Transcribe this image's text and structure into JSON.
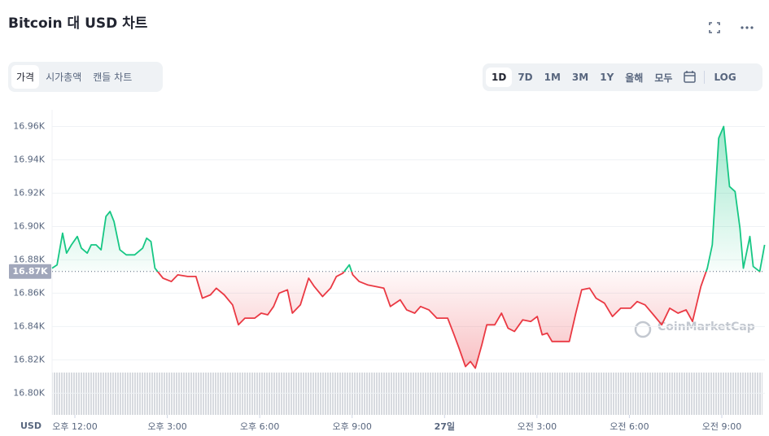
{
  "header": {
    "title": "Bitcoin 대 USD 차트"
  },
  "tabs": [
    "가격",
    "시가총액",
    "캔들 차트"
  ],
  "ranges": [
    "1D",
    "7D",
    "1M",
    "3M",
    "1Y",
    "올해",
    "모두"
  ],
  "log_button": "LOG",
  "chart_data": {
    "type": "line",
    "y_unit_label": "USD",
    "watermark": "CoinMarketCap",
    "up_color": "#16c784",
    "down_color": "#ea3943",
    "grid": true,
    "baseline": {
      "value": 16873,
      "label": "16.87K"
    },
    "xlim": [
      11.26,
      34.4
    ],
    "xticks": [
      {
        "value": 12,
        "label": "오후 12:00"
      },
      {
        "value": 15,
        "label": "오후 3:00"
      },
      {
        "value": 18,
        "label": "오후 6:00"
      },
      {
        "value": 21,
        "label": "오후 9:00"
      },
      {
        "value": 24,
        "label": "27일"
      },
      {
        "value": 27,
        "label": "오전 3:00"
      },
      {
        "value": 30,
        "label": "오전 6:00"
      },
      {
        "value": 33,
        "label": "오전 9:00"
      }
    ],
    "ylim": [
      16787,
      16970
    ],
    "yticks": [
      {
        "value": 16800,
        "label": "16.80K"
      },
      {
        "value": 16820,
        "label": "16.82K"
      },
      {
        "value": 16840,
        "label": "16.84K"
      },
      {
        "value": 16860,
        "label": "16.86K"
      },
      {
        "value": 16880,
        "label": "16.88K"
      },
      {
        "value": 16900,
        "label": "16.90K"
      },
      {
        "value": 16920,
        "label": "16.92K"
      },
      {
        "value": 16940,
        "label": "16.94K"
      },
      {
        "value": 16960,
        "label": "16.96K"
      }
    ],
    "x": [
      11.26,
      11.42,
      11.6,
      11.73,
      11.89,
      12.08,
      12.21,
      12.4,
      12.53,
      12.69,
      12.85,
      13.01,
      13.14,
      13.27,
      13.46,
      13.67,
      13.94,
      14.2,
      14.33,
      14.47,
      14.6,
      14.86,
      15.13,
      15.34,
      15.66,
      15.93,
      16.14,
      16.4,
      16.59,
      16.85,
      17.12,
      17.31,
      17.52,
      17.84,
      18.05,
      18.26,
      18.45,
      18.63,
      18.9,
      19.06,
      19.32,
      19.59,
      19.77,
      20.04,
      20.3,
      20.49,
      20.7,
      20.91,
      21.02,
      21.23,
      21.5,
      22.03,
      22.24,
      22.56,
      22.77,
      23.03,
      23.22,
      23.49,
      23.75,
      24.1,
      24.31,
      24.47,
      24.68,
      24.84,
      25.0,
      25.21,
      25.37,
      25.63,
      25.85,
      26.06,
      26.27,
      26.54,
      26.8,
      27.01,
      27.17,
      27.33,
      27.49,
      27.7,
      28.05,
      28.26,
      28.45,
      28.71,
      28.92,
      29.19,
      29.45,
      29.72,
      30.04,
      30.25,
      30.51,
      30.78,
      31.05,
      31.31,
      31.58,
      31.84,
      32.05,
      32.32,
      32.53,
      32.69,
      32.9,
      33.06,
      33.25,
      33.43,
      33.59,
      33.7,
      33.91,
      34.02,
      34.23,
      34.39
    ],
    "values": [
      16875,
      16877,
      16896,
      16884,
      16889,
      16894,
      16887,
      16884,
      16889,
      16889,
      16886,
      16906,
      16909,
      16903,
      16886,
      16883,
      16883,
      16887,
      16893,
      16891,
      16875,
      16869,
      16867,
      16871,
      16870,
      16870,
      16857,
      16859,
      16863,
      16859,
      16853,
      16841,
      16845,
      16845,
      16848,
      16847,
      16852,
      16860,
      16862,
      16848,
      16853,
      16869,
      16864,
      16858,
      16863,
      16870,
      16872,
      16877,
      16871,
      16867,
      16865,
      16863,
      16852,
      16856,
      16850,
      16848,
      16852,
      16850,
      16845,
      16845,
      16835,
      16827,
      16816,
      16819,
      16815,
      16829,
      16841,
      16841,
      16848,
      16839,
      16837,
      16844,
      16843,
      16846,
      16835,
      16836,
      16831,
      16831,
      16831,
      16848,
      16862,
      16863,
      16857,
      16854,
      16846,
      16851,
      16851,
      16855,
      16853,
      16847,
      16841,
      16851,
      16848,
      16850,
      16843,
      16864,
      16875,
      16889,
      16953,
      16960,
      16924,
      16921,
      16899,
      16875,
      16894,
      16876,
      16873,
      16889
    ]
  }
}
